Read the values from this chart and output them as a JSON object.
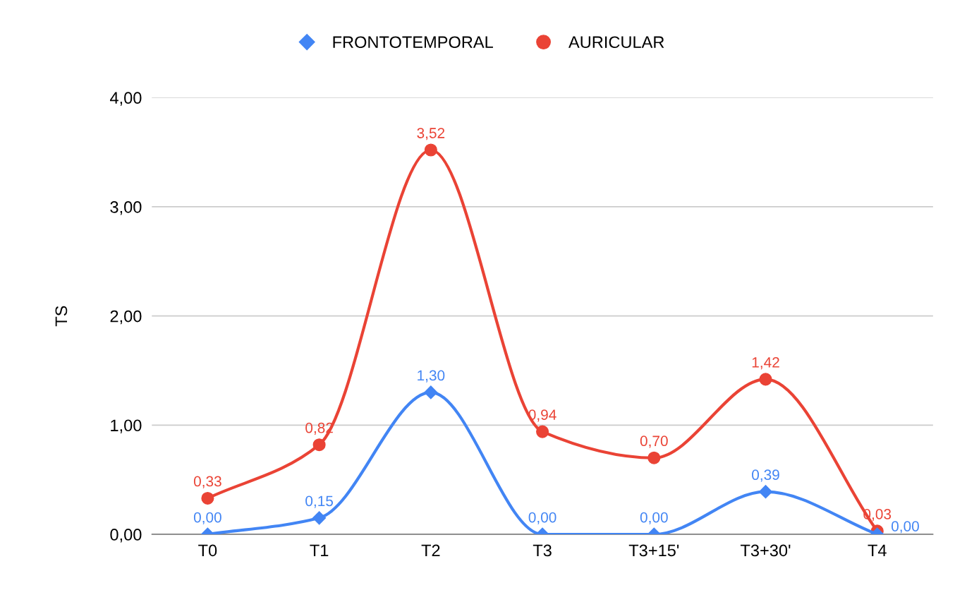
{
  "chart_data": {
    "type": "line",
    "ylabel": "TS",
    "categories": [
      "T0",
      "T1",
      "T2",
      "T3",
      "T3+15'",
      "T3+30'",
      "T4"
    ],
    "series": [
      {
        "name": "FRONTOTEMPORAL",
        "color": "#4285f4",
        "marker": "diamond",
        "values": [
          0,
          0.15,
          1.3,
          0,
          0,
          0.39,
          0
        ],
        "value_labels": [
          "0,00",
          "0,15",
          "1,30",
          "0,00",
          "0,00",
          "0,39",
          "0,00"
        ]
      },
      {
        "name": "AURICULAR",
        "color": "#ea4335",
        "marker": "circle",
        "values": [
          0.33,
          0.82,
          3.52,
          0.94,
          0.7,
          1.42,
          0.03
        ],
        "value_labels": [
          "0,33",
          "0,82",
          "3,52",
          "0,94",
          "0,70",
          "1,42",
          "0,03"
        ]
      }
    ],
    "ylim": [
      0,
      4
    ],
    "yticks": [
      {
        "value": 0,
        "label": "0,00"
      },
      {
        "value": 1,
        "label": "1,00"
      },
      {
        "value": 2,
        "label": "2,00"
      },
      {
        "value": 3,
        "label": "3,00"
      },
      {
        "value": 4,
        "label": "4,00"
      }
    ],
    "grid": "y",
    "legend": "top",
    "line_style": "solid"
  }
}
